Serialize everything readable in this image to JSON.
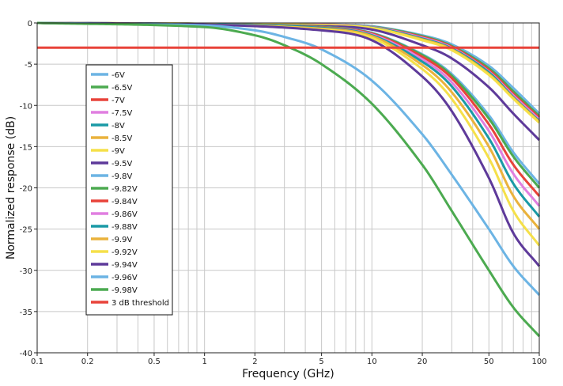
{
  "chart_data": {
    "type": "line",
    "title": "",
    "xlabel": "Frequency (GHz)",
    "ylabel": "Normalized response (dB)",
    "x_scale": "log",
    "xlim": [
      0.1,
      100
    ],
    "ylim": [
      -40,
      0
    ],
    "x_ticks": [
      {
        "value": 0.1,
        "label": "0.1"
      },
      {
        "value": 0.2,
        "label": "0.2"
      },
      {
        "value": 0.5,
        "label": "0.5"
      },
      {
        "value": 1,
        "label": "1"
      },
      {
        "value": 2,
        "label": "2"
      },
      {
        "value": 5,
        "label": "5"
      },
      {
        "value": 10,
        "label": "10"
      },
      {
        "value": 20,
        "label": "20"
      },
      {
        "value": 50,
        "label": "50"
      },
      {
        "value": 100,
        "label": "100"
      }
    ],
    "y_ticks": [
      {
        "value": 0,
        "label": "0"
      },
      {
        "value": -5,
        "label": "-5"
      },
      {
        "value": -10,
        "label": "-10"
      },
      {
        "value": -15,
        "label": "-15"
      },
      {
        "value": -20,
        "label": "-20"
      },
      {
        "value": -25,
        "label": "-25"
      },
      {
        "value": -30,
        "label": "-30"
      },
      {
        "value": -35,
        "label": "-35"
      },
      {
        "value": -40,
        "label": "-40"
      }
    ],
    "grid": true,
    "legend_position": "left",
    "threshold": {
      "name": "3 dB threshold",
      "value": -3,
      "color": "#e8433a"
    },
    "series": [
      {
        "name": "-6V",
        "color": "#6cb4e4",
        "x": [
          0.1,
          1,
          5,
          10,
          20,
          30,
          50,
          70,
          100
        ],
        "y": [
          0,
          -0.1,
          -0.2,
          -0.4,
          -1.5,
          -2.6,
          -5.2,
          -7.9,
          -11.0
        ]
      },
      {
        "name": "-6.5V",
        "color": "#4caa50",
        "x": [
          0.1,
          1,
          5,
          10,
          20,
          30,
          50,
          70,
          100
        ],
        "y": [
          0,
          -0.1,
          -0.2,
          -0.45,
          -1.6,
          -2.8,
          -5.5,
          -8.3,
          -11.3
        ]
      },
      {
        "name": "-7V",
        "color": "#e8433a",
        "x": [
          0.1,
          1,
          5,
          10,
          20,
          30,
          50,
          70,
          100
        ],
        "y": [
          0,
          -0.1,
          -0.2,
          -0.5,
          -1.7,
          -2.9,
          -5.7,
          -8.6,
          -11.5
        ]
      },
      {
        "name": "-7.5V",
        "color": "#e07fe0",
        "x": [
          0.1,
          1,
          5,
          10,
          20,
          30,
          50,
          70,
          100
        ],
        "y": [
          0,
          -0.1,
          -0.2,
          -0.5,
          -1.8,
          -3.0,
          -5.9,
          -8.8,
          -11.7
        ]
      },
      {
        "name": "-8V",
        "color": "#1a9aa6",
        "x": [
          0.1,
          1,
          5,
          10,
          20,
          30,
          50,
          70,
          100
        ],
        "y": [
          0,
          -0.1,
          -0.25,
          -0.55,
          -1.9,
          -3.1,
          -6.0,
          -9.0,
          -11.9
        ]
      },
      {
        "name": "-8.5V",
        "color": "#eab23c",
        "x": [
          0.1,
          1,
          5,
          10,
          20,
          30,
          50,
          70,
          100
        ],
        "y": [
          0,
          -0.1,
          -0.25,
          -0.6,
          -2.0,
          -3.2,
          -6.2,
          -9.1,
          -12.0
        ]
      },
      {
        "name": "-9V",
        "color": "#f5e04a",
        "x": [
          0.1,
          1,
          5,
          10,
          20,
          30,
          50,
          70,
          100
        ],
        "y": [
          0,
          -0.1,
          -0.3,
          -0.6,
          -2.1,
          -3.3,
          -6.3,
          -9.2,
          -12.1
        ]
      },
      {
        "name": "-9.5V",
        "color": "#5e3a9a",
        "x": [
          0.1,
          1,
          5,
          10,
          20,
          30,
          50,
          70,
          100
        ],
        "y": [
          0,
          -0.15,
          -0.4,
          -0.8,
          -2.7,
          -4.3,
          -7.8,
          -11.0,
          -14.2
        ]
      },
      {
        "name": "-9.8V",
        "color": "#6cb4e4",
        "x": [
          0.1,
          1,
          5,
          10,
          20,
          30,
          50,
          70,
          100
        ],
        "y": [
          0,
          -0.15,
          -0.5,
          -1.2,
          -3.8,
          -6.2,
          -11.2,
          -15.7,
          -19.5
        ]
      },
      {
        "name": "-9.82V",
        "color": "#4caa50",
        "x": [
          0.1,
          1,
          5,
          10,
          20,
          30,
          50,
          70,
          100
        ],
        "y": [
          0,
          -0.15,
          -0.5,
          -1.25,
          -3.9,
          -6.4,
          -11.6,
          -16.2,
          -20.0
        ]
      },
      {
        "name": "-9.84V",
        "color": "#e8433a",
        "x": [
          0.1,
          1,
          5,
          10,
          20,
          30,
          50,
          70,
          100
        ],
        "y": [
          0,
          -0.15,
          -0.55,
          -1.3,
          -4.1,
          -6.7,
          -12.3,
          -17.2,
          -21.0
        ]
      },
      {
        "name": "-9.86V",
        "color": "#e07fe0",
        "x": [
          0.1,
          1,
          5,
          10,
          20,
          30,
          50,
          70,
          100
        ],
        "y": [
          0,
          -0.15,
          -0.6,
          -1.4,
          -4.4,
          -7.2,
          -13.1,
          -18.3,
          -22.2
        ]
      },
      {
        "name": "-9.88V",
        "color": "#1a9aa6",
        "x": [
          0.1,
          1,
          5,
          10,
          20,
          30,
          50,
          70,
          100
        ],
        "y": [
          0,
          -0.15,
          -0.6,
          -1.5,
          -4.7,
          -7.7,
          -14.0,
          -19.5,
          -23.5
        ]
      },
      {
        "name": "-9.9V",
        "color": "#eab23c",
        "x": [
          0.1,
          1,
          5,
          10,
          20,
          30,
          50,
          70,
          100
        ],
        "y": [
          0,
          -0.2,
          -0.7,
          -1.6,
          -5.1,
          -8.4,
          -15.0,
          -21.0,
          -25.0
        ]
      },
      {
        "name": "-9.92V",
        "color": "#f5e04a",
        "x": [
          0.1,
          1,
          5,
          10,
          20,
          30,
          50,
          70,
          100
        ],
        "y": [
          0,
          -0.2,
          -0.8,
          -1.8,
          -5.6,
          -9.2,
          -16.4,
          -22.8,
          -27.0
        ]
      },
      {
        "name": "-9.94V",
        "color": "#5e3a9a",
        "x": [
          0.1,
          1,
          5,
          10,
          20,
          30,
          50,
          70,
          100
        ],
        "y": [
          0,
          -0.2,
          -0.9,
          -2.1,
          -6.5,
          -10.7,
          -18.8,
          -25.5,
          -29.5
        ]
      },
      {
        "name": "-9.96V",
        "color": "#6cb4e4",
        "x": [
          0.1,
          1,
          2,
          3,
          5,
          10,
          20,
          30,
          50,
          70,
          100
        ],
        "y": [
          0,
          -0.3,
          -0.9,
          -1.7,
          -3.2,
          -7.0,
          -13.5,
          -18.4,
          -25.0,
          -29.5,
          -33.0
        ]
      },
      {
        "name": "-9.98V",
        "color": "#4caa50",
        "x": [
          0.1,
          1,
          2,
          3,
          5,
          10,
          20,
          30,
          50,
          70,
          100
        ],
        "y": [
          0,
          -0.5,
          -1.5,
          -2.7,
          -5.0,
          -9.8,
          -17.2,
          -22.8,
          -30.0,
          -34.5,
          -38.0
        ]
      }
    ]
  }
}
